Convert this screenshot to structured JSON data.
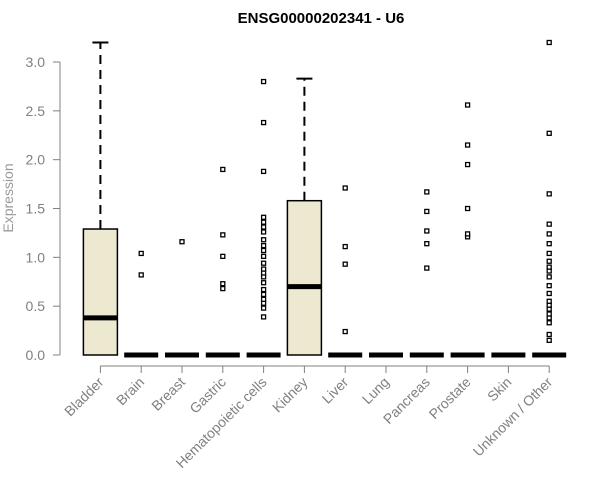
{
  "chart_data": {
    "type": "boxplot",
    "title": "ENSG00000202341 - U6",
    "xlabel": "",
    "ylabel": "Expression",
    "ylim": [
      0,
      3.2
    ],
    "yticks": [
      "0.0",
      "0.5",
      "1.0",
      "1.5",
      "2.0",
      "2.5",
      "3.0"
    ],
    "categories": [
      "Bladder",
      "Brain",
      "Breast",
      "Gastric",
      "Hematopoietic cells",
      "Kidney",
      "Liver",
      "Lung",
      "Pancreas",
      "Prostate",
      "Skin",
      "Unknown / Other"
    ],
    "box_color": "#ede8d0",
    "boxes": [
      {
        "q1": 0.0,
        "median": 0.38,
        "q3": 1.29,
        "whisker_low": 0.0,
        "whisker_high": 3.2,
        "outliers": []
      },
      {
        "q1": 0.0,
        "median": 0.0,
        "q3": 0.0,
        "whisker_low": 0.0,
        "whisker_high": 0.0,
        "outliers": [
          0.82,
          1.04
        ]
      },
      {
        "q1": 0.0,
        "median": 0.0,
        "q3": 0.0,
        "whisker_low": 0.0,
        "whisker_high": 0.0,
        "outliers": [
          1.16
        ]
      },
      {
        "q1": 0.0,
        "median": 0.0,
        "q3": 0.0,
        "whisker_low": 0.0,
        "whisker_high": 0.0,
        "outliers": [
          0.68,
          0.73,
          1.01,
          1.23,
          1.9
        ]
      },
      {
        "q1": 0.0,
        "median": 0.0,
        "q3": 0.0,
        "whisker_low": 0.0,
        "whisker_high": 0.0,
        "outliers": [
          0.39,
          0.48,
          0.53,
          0.57,
          0.62,
          0.67,
          0.74,
          0.8,
          0.84,
          0.88,
          0.94,
          1.01,
          1.07,
          1.12,
          1.18,
          1.26,
          1.31,
          1.36,
          1.41,
          1.88,
          2.38,
          2.8
        ]
      },
      {
        "q1": 0.0,
        "median": 0.7,
        "q3": 1.58,
        "whisker_low": 0.0,
        "whisker_high": 2.83,
        "outliers": []
      },
      {
        "q1": 0.0,
        "median": 0.0,
        "q3": 0.0,
        "whisker_low": 0.0,
        "whisker_high": 0.0,
        "outliers": [
          0.24,
          0.93,
          1.11,
          1.71
        ]
      },
      {
        "q1": 0.0,
        "median": 0.0,
        "q3": 0.0,
        "whisker_low": 0.0,
        "whisker_high": 0.0,
        "outliers": []
      },
      {
        "q1": 0.0,
        "median": 0.0,
        "q3": 0.0,
        "whisker_low": 0.0,
        "whisker_high": 0.0,
        "outliers": [
          0.89,
          1.14,
          1.27,
          1.47,
          1.67
        ]
      },
      {
        "q1": 0.0,
        "median": 0.0,
        "q3": 0.0,
        "whisker_low": 0.0,
        "whisker_high": 0.0,
        "outliers": [
          1.21,
          1.24,
          1.5,
          1.95,
          2.15,
          2.56
        ]
      },
      {
        "q1": 0.0,
        "median": 0.0,
        "q3": 0.0,
        "whisker_low": 0.0,
        "whisker_high": 0.0,
        "outliers": []
      },
      {
        "q1": 0.0,
        "median": 0.0,
        "q3": 0.0,
        "whisker_low": 0.0,
        "whisker_high": 0.0,
        "outliers": [
          0.15,
          0.21,
          0.33,
          0.38,
          0.42,
          0.47,
          0.51,
          0.55,
          0.63,
          0.71,
          0.8,
          0.86,
          0.9,
          0.96,
          1.04,
          1.14,
          1.24,
          1.34,
          1.65,
          2.27,
          3.2
        ]
      }
    ]
  }
}
